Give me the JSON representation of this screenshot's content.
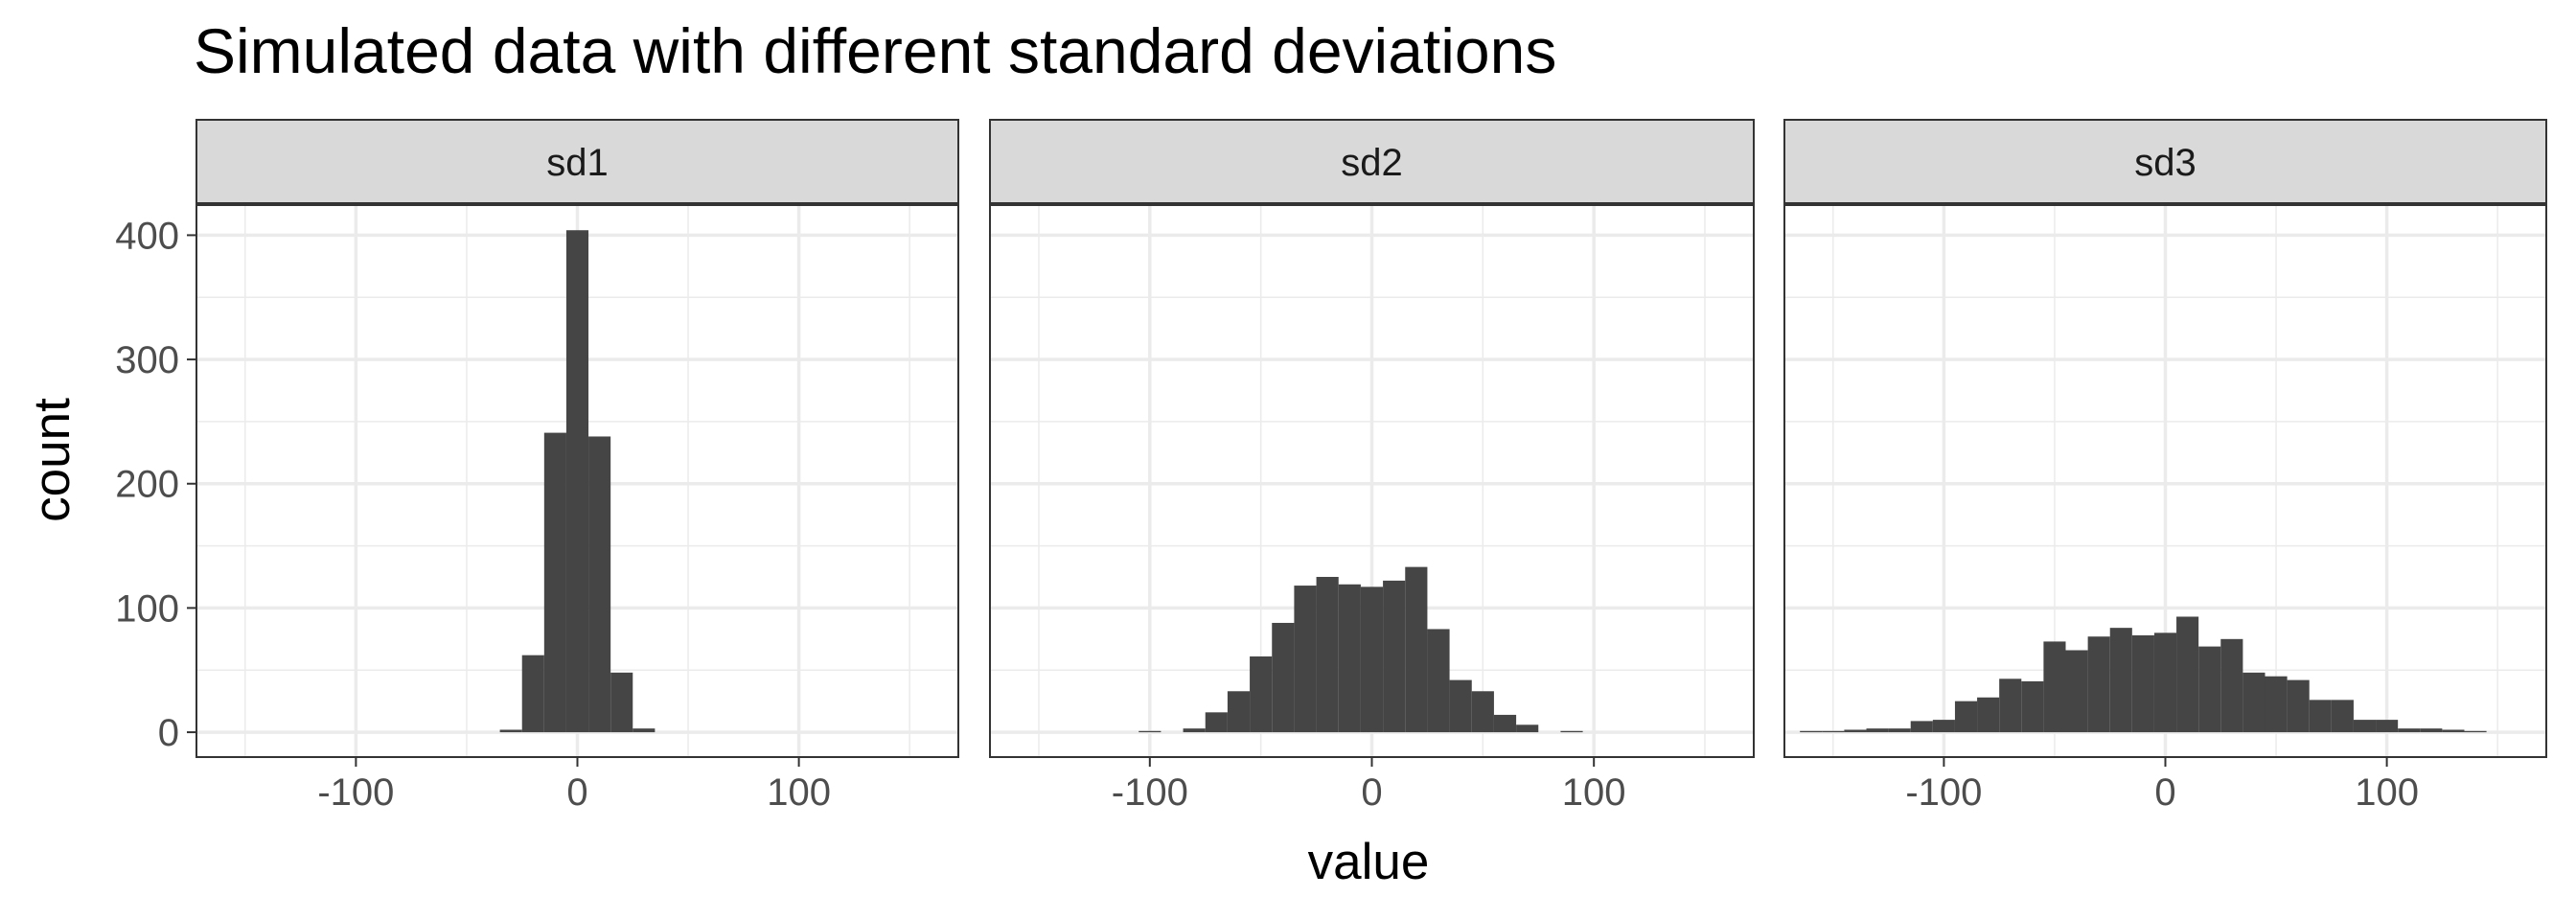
{
  "chart_data": {
    "type": "bar",
    "title": "Simulated data with different standard deviations",
    "xlabel": "value",
    "ylabel": "count",
    "xlim": [
      -172,
      172
    ],
    "ylim": [
      -20,
      425
    ],
    "x_ticks": [
      -100,
      0,
      100
    ],
    "x_tick_labels": [
      "-100",
      "0",
      "100"
    ],
    "y_ticks": [
      0,
      100,
      200,
      300,
      400
    ],
    "y_tick_labels": [
      "0",
      "100",
      "200",
      "300",
      "400"
    ],
    "grid": true,
    "legend": "none",
    "bar_color": "#454545",
    "facets": [
      {
        "label": "sd1",
        "bin_width": 10,
        "bins": [
          {
            "x": -30,
            "count": 2
          },
          {
            "x": -20,
            "count": 62
          },
          {
            "x": -10,
            "count": 241
          },
          {
            "x": 0,
            "count": 404
          },
          {
            "x": 10,
            "count": 238
          },
          {
            "x": 20,
            "count": 48
          },
          {
            "x": 30,
            "count": 3
          }
        ]
      },
      {
        "label": "sd2",
        "bin_width": 10,
        "bins": [
          {
            "x": -100,
            "count": 1
          },
          {
            "x": -80,
            "count": 3
          },
          {
            "x": -70,
            "count": 16
          },
          {
            "x": -60,
            "count": 33
          },
          {
            "x": -50,
            "count": 61
          },
          {
            "x": -40,
            "count": 88
          },
          {
            "x": -30,
            "count": 118
          },
          {
            "x": -20,
            "count": 125
          },
          {
            "x": -10,
            "count": 119
          },
          {
            "x": 0,
            "count": 117
          },
          {
            "x": 10,
            "count": 122
          },
          {
            "x": 20,
            "count": 133
          },
          {
            "x": 30,
            "count": 83
          },
          {
            "x": 40,
            "count": 42
          },
          {
            "x": 50,
            "count": 33
          },
          {
            "x": 60,
            "count": 14
          },
          {
            "x": 70,
            "count": 6
          },
          {
            "x": 90,
            "count": 1
          }
        ]
      },
      {
        "label": "sd3",
        "bin_width": 10,
        "bins": [
          {
            "x": -160,
            "count": 1
          },
          {
            "x": -150,
            "count": 1
          },
          {
            "x": -140,
            "count": 2
          },
          {
            "x": -130,
            "count": 3
          },
          {
            "x": -120,
            "count": 3
          },
          {
            "x": -110,
            "count": 9
          },
          {
            "x": -100,
            "count": 10
          },
          {
            "x": -90,
            "count": 25
          },
          {
            "x": -80,
            "count": 28
          },
          {
            "x": -70,
            "count": 43
          },
          {
            "x": -60,
            "count": 41
          },
          {
            "x": -50,
            "count": 73
          },
          {
            "x": -40,
            "count": 66
          },
          {
            "x": -30,
            "count": 77
          },
          {
            "x": -20,
            "count": 84
          },
          {
            "x": -10,
            "count": 78
          },
          {
            "x": 0,
            "count": 80
          },
          {
            "x": 10,
            "count": 93
          },
          {
            "x": 20,
            "count": 69
          },
          {
            "x": 30,
            "count": 75
          },
          {
            "x": 40,
            "count": 48
          },
          {
            "x": 50,
            "count": 45
          },
          {
            "x": 60,
            "count": 42
          },
          {
            "x": 70,
            "count": 26
          },
          {
            "x": 80,
            "count": 26
          },
          {
            "x": 90,
            "count": 10
          },
          {
            "x": 100,
            "count": 10
          },
          {
            "x": 110,
            "count": 3
          },
          {
            "x": 120,
            "count": 3
          },
          {
            "x": 130,
            "count": 2
          },
          {
            "x": 140,
            "count": 1
          }
        ]
      }
    ]
  }
}
